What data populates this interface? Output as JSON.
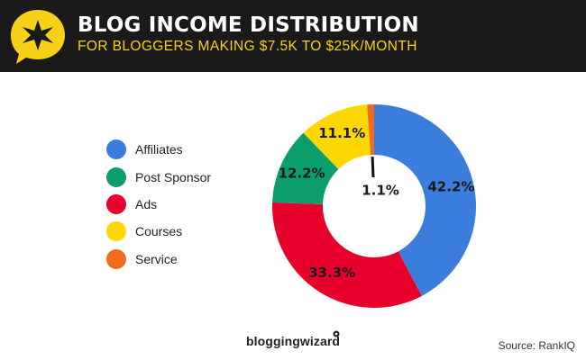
{
  "header": {
    "title": "BLOG INCOME DISTRIBUTION",
    "subtitle": "FOR BLOGGERS MAKING $7.5K TO $25K/MONTH"
  },
  "footer": {
    "brand": "bloggingwizard",
    "source": "Source: RankIQ"
  },
  "colors": {
    "header_bg": "#1a1a1a",
    "accent": "#f7d117"
  },
  "chart_data": {
    "type": "pie",
    "variant": "donut",
    "title": "BLOG INCOME DISTRIBUTION",
    "subtitle": "FOR BLOGGERS MAKING $7.5K TO $25K/MONTH",
    "legend_position": "left",
    "slices": [
      {
        "name": "Affiliates",
        "value": 42.2,
        "label": "42.2%",
        "color": "#3b7ddd"
      },
      {
        "name": "Ads",
        "value": 33.3,
        "label": "33.3%",
        "color": "#e8002d"
      },
      {
        "name": "Post Sponsor",
        "value": 12.2,
        "label": "12.2%",
        "color": "#0c9e6a"
      },
      {
        "name": "Courses",
        "value": 11.1,
        "label": "11.1%",
        "color": "#ffd700"
      },
      {
        "name": "Service",
        "value": 1.1,
        "label": "1.1%",
        "color": "#f26b1d"
      }
    ],
    "legend": [
      {
        "name": "Affiliates",
        "color": "#3b7ddd"
      },
      {
        "name": "Post Sponsor",
        "color": "#0c9e6a"
      },
      {
        "name": "Ads",
        "color": "#e8002d"
      },
      {
        "name": "Courses",
        "color": "#ffd700"
      },
      {
        "name": "Service",
        "color": "#f26b1d"
      }
    ]
  }
}
